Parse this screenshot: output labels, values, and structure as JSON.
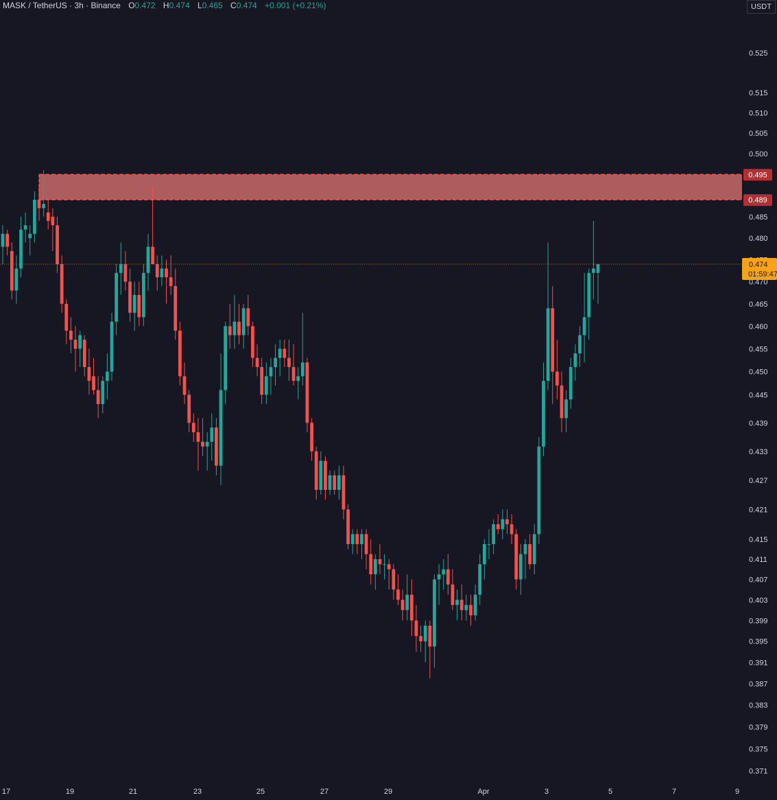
{
  "header": {
    "symbol": "MASK / TetherUS · 3h · Binance",
    "o_label": "O",
    "o_value": "0.472",
    "h_label": "H",
    "h_value": "0.474",
    "l_label": "L",
    "l_value": "0.465",
    "c_label": "C",
    "c_value": "0.474",
    "change": "+0.001 (+0.21%)"
  },
  "currency_button": "USDT",
  "colors": {
    "background": "#161722",
    "up": "#26a69a",
    "down": "#ef5350",
    "zone_fill": "#c96a6a",
    "zone_border": "#ef5350",
    "price_tag": "#f7a21b"
  },
  "price_tag": {
    "price": "0.474",
    "countdown": "01:59:47"
  },
  "zone_tags": {
    "top": "0.495",
    "bottom": "0.489"
  },
  "chart_data": {
    "type": "candlestick",
    "y_scale": "log",
    "ylim": [
      0.369,
      0.535
    ],
    "y_ticks": [
      "0.525",
      "0.515",
      "0.510",
      "0.505",
      "0.500",
      "0.495",
      "0.489",
      "0.485",
      "0.480",
      "0.475",
      "0.470",
      "0.465",
      "0.460",
      "0.455",
      "0.450",
      "0.445",
      "0.439",
      "0.433",
      "0.427",
      "0.421",
      "0.415",
      "0.411",
      "0.407",
      "0.403",
      "0.399",
      "0.395",
      "0.391",
      "0.387",
      "0.383",
      "0.379",
      "0.375",
      "0.371"
    ],
    "x_ticks": [
      "17",
      "19",
      "21",
      "23",
      "25",
      "27",
      "29",
      "Apr",
      "3",
      "5",
      "7",
      "9"
    ],
    "resistance_zone": {
      "top": 0.495,
      "bottom": 0.489
    },
    "current_price": 0.474,
    "ohlc": [
      [
        0.478,
        0.483,
        0.474,
        0.481
      ],
      [
        0.481,
        0.482,
        0.476,
        0.478
      ],
      [
        0.477,
        0.479,
        0.466,
        0.468
      ],
      [
        0.468,
        0.476,
        0.465,
        0.473
      ],
      [
        0.473,
        0.485,
        0.471,
        0.482
      ],
      [
        0.482,
        0.486,
        0.479,
        0.483
      ],
      [
        0.48,
        0.483,
        0.476,
        0.481
      ],
      [
        0.481,
        0.491,
        0.479,
        0.489
      ],
      [
        0.489,
        0.492,
        0.484,
        0.487
      ],
      [
        0.487,
        0.496,
        0.485,
        0.488
      ],
      [
        0.486,
        0.489,
        0.482,
        0.484
      ],
      [
        0.485,
        0.487,
        0.477,
        0.483
      ],
      [
        0.483,
        0.485,
        0.472,
        0.474
      ],
      [
        0.474,
        0.476,
        0.463,
        0.465
      ],
      [
        0.465,
        0.466,
        0.456,
        0.459
      ],
      [
        0.459,
        0.462,
        0.454,
        0.457
      ],
      [
        0.457,
        0.46,
        0.45,
        0.455
      ],
      [
        0.455,
        0.459,
        0.451,
        0.458
      ],
      [
        0.457,
        0.458,
        0.449,
        0.451
      ],
      [
        0.451,
        0.455,
        0.445,
        0.448
      ],
      [
        0.449,
        0.453,
        0.445,
        0.446
      ],
      [
        0.446,
        0.449,
        0.44,
        0.443
      ],
      [
        0.443,
        0.449,
        0.441,
        0.448
      ],
      [
        0.448,
        0.454,
        0.444,
        0.45
      ],
      [
        0.45,
        0.463,
        0.448,
        0.461
      ],
      [
        0.461,
        0.474,
        0.458,
        0.472
      ],
      [
        0.472,
        0.479,
        0.467,
        0.474
      ],
      [
        0.474,
        0.477,
        0.468,
        0.47
      ],
      [
        0.47,
        0.473,
        0.461,
        0.463
      ],
      [
        0.463,
        0.47,
        0.459,
        0.467
      ],
      [
        0.467,
        0.47,
        0.46,
        0.462
      ],
      [
        0.462,
        0.474,
        0.46,
        0.472
      ],
      [
        0.472,
        0.481,
        0.468,
        0.478
      ],
      [
        0.478,
        0.492,
        0.474,
        0.474
      ],
      [
        0.474,
        0.476,
        0.468,
        0.471
      ],
      [
        0.471,
        0.476,
        0.469,
        0.473
      ],
      [
        0.473,
        0.475,
        0.465,
        0.471
      ],
      [
        0.471,
        0.476,
        0.467,
        0.469
      ],
      [
        0.469,
        0.473,
        0.457,
        0.459
      ],
      [
        0.459,
        0.461,
        0.447,
        0.449
      ],
      [
        0.449,
        0.452,
        0.443,
        0.445
      ],
      [
        0.445,
        0.446,
        0.437,
        0.439
      ],
      [
        0.439,
        0.441,
        0.435,
        0.437
      ],
      [
        0.437,
        0.44,
        0.429,
        0.435
      ],
      [
        0.435,
        0.44,
        0.432,
        0.434
      ],
      [
        0.434,
        0.437,
        0.429,
        0.435
      ],
      [
        0.435,
        0.441,
        0.431,
        0.438
      ],
      [
        0.438,
        0.44,
        0.428,
        0.43
      ],
      [
        0.43,
        0.454,
        0.426,
        0.446
      ],
      [
        0.446,
        0.461,
        0.443,
        0.46
      ],
      [
        0.46,
        0.465,
        0.455,
        0.458
      ],
      [
        0.458,
        0.467,
        0.455,
        0.461
      ],
      [
        0.461,
        0.465,
        0.456,
        0.458
      ],
      [
        0.458,
        0.465,
        0.455,
        0.464
      ],
      [
        0.464,
        0.467,
        0.458,
        0.46
      ],
      [
        0.46,
        0.461,
        0.451,
        0.453
      ],
      [
        0.453,
        0.456,
        0.449,
        0.451
      ],
      [
        0.451,
        0.453,
        0.443,
        0.445
      ],
      [
        0.445,
        0.452,
        0.443,
        0.449
      ],
      [
        0.449,
        0.453,
        0.445,
        0.451
      ],
      [
        0.451,
        0.456,
        0.447,
        0.453
      ],
      [
        0.453,
        0.457,
        0.449,
        0.455
      ],
      [
        0.455,
        0.457,
        0.451,
        0.453
      ],
      [
        0.453,
        0.457,
        0.448,
        0.451
      ],
      [
        0.451,
        0.456,
        0.447,
        0.448
      ],
      [
        0.448,
        0.451,
        0.444,
        0.449
      ],
      [
        0.449,
        0.463,
        0.447,
        0.452
      ],
      [
        0.452,
        0.453,
        0.437,
        0.439
      ],
      [
        0.439,
        0.44,
        0.431,
        0.433
      ],
      [
        0.433,
        0.434,
        0.423,
        0.425
      ],
      [
        0.425,
        0.433,
        0.424,
        0.431
      ],
      [
        0.431,
        0.432,
        0.423,
        0.425
      ],
      [
        0.425,
        0.429,
        0.424,
        0.428
      ],
      [
        0.428,
        0.429,
        0.424,
        0.425
      ],
      [
        0.425,
        0.43,
        0.423,
        0.428
      ],
      [
        0.428,
        0.43,
        0.419,
        0.421
      ],
      [
        0.421,
        0.422,
        0.413,
        0.414
      ],
      [
        0.414,
        0.417,
        0.412,
        0.416
      ],
      [
        0.416,
        0.417,
        0.412,
        0.414
      ],
      [
        0.414,
        0.417,
        0.411,
        0.416
      ],
      [
        0.416,
        0.417,
        0.409,
        0.412
      ],
      [
        0.412,
        0.415,
        0.406,
        0.408
      ],
      [
        0.408,
        0.412,
        0.405,
        0.411
      ],
      [
        0.411,
        0.414,
        0.408,
        0.41
      ],
      [
        0.41,
        0.412,
        0.407,
        0.41
      ],
      [
        0.41,
        0.411,
        0.405,
        0.409
      ],
      [
        0.409,
        0.41,
        0.403,
        0.405
      ],
      [
        0.405,
        0.408,
        0.402,
        0.403
      ],
      [
        0.403,
        0.405,
        0.399,
        0.401
      ],
      [
        0.401,
        0.408,
        0.399,
        0.404
      ],
      [
        0.404,
        0.407,
        0.396,
        0.399
      ],
      [
        0.399,
        0.402,
        0.393,
        0.396
      ],
      [
        0.396,
        0.398,
        0.393,
        0.395
      ],
      [
        0.395,
        0.399,
        0.391,
        0.398
      ],
      [
        0.398,
        0.399,
        0.388,
        0.394
      ],
      [
        0.394,
        0.408,
        0.39,
        0.407
      ],
      [
        0.407,
        0.41,
        0.402,
        0.408
      ],
      [
        0.408,
        0.411,
        0.405,
        0.409
      ],
      [
        0.409,
        0.412,
        0.404,
        0.406
      ],
      [
        0.406,
        0.409,
        0.401,
        0.402
      ],
      [
        0.402,
        0.405,
        0.399,
        0.403
      ],
      [
        0.403,
        0.406,
        0.399,
        0.401
      ],
      [
        0.401,
        0.404,
        0.399,
        0.402
      ],
      [
        0.402,
        0.404,
        0.398,
        0.4
      ],
      [
        0.4,
        0.406,
        0.399,
        0.404
      ],
      [
        0.404,
        0.412,
        0.402,
        0.41
      ],
      [
        0.41,
        0.415,
        0.407,
        0.414
      ],
      [
        0.414,
        0.417,
        0.411,
        0.414
      ],
      [
        0.414,
        0.419,
        0.412,
        0.418
      ],
      [
        0.418,
        0.42,
        0.416,
        0.417
      ],
      [
        0.417,
        0.421,
        0.415,
        0.419
      ],
      [
        0.419,
        0.421,
        0.416,
        0.418
      ],
      [
        0.418,
        0.42,
        0.414,
        0.416
      ],
      [
        0.416,
        0.417,
        0.405,
        0.407
      ],
      [
        0.407,
        0.414,
        0.404,
        0.412
      ],
      [
        0.412,
        0.415,
        0.407,
        0.414
      ],
      [
        0.414,
        0.416,
        0.409,
        0.41
      ],
      [
        0.41,
        0.418,
        0.408,
        0.416
      ],
      [
        0.416,
        0.436,
        0.414,
        0.434
      ],
      [
        0.434,
        0.452,
        0.432,
        0.448
      ],
      [
        0.448,
        0.479,
        0.446,
        0.464
      ],
      [
        0.464,
        0.469,
        0.443,
        0.45
      ],
      [
        0.45,
        0.457,
        0.444,
        0.447
      ],
      [
        0.447,
        0.45,
        0.437,
        0.44
      ],
      [
        0.44,
        0.446,
        0.437,
        0.444
      ],
      [
        0.444,
        0.453,
        0.442,
        0.451
      ],
      [
        0.451,
        0.456,
        0.448,
        0.454
      ],
      [
        0.454,
        0.46,
        0.451,
        0.458
      ],
      [
        0.458,
        0.472,
        0.452,
        0.462
      ],
      [
        0.462,
        0.473,
        0.457,
        0.472
      ],
      [
        0.472,
        0.484,
        0.466,
        0.473
      ],
      [
        0.472,
        0.474,
        0.465,
        0.474
      ]
    ]
  }
}
